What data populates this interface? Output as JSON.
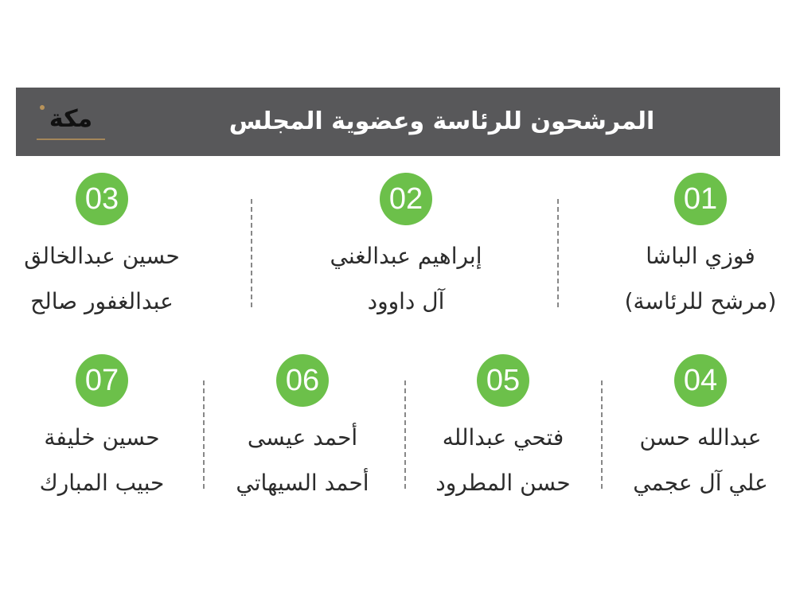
{
  "header": {
    "title": "المرشحون للرئاسة وعضوية المجلس",
    "logo_text": "مكة",
    "background": "#58585a"
  },
  "accent": "#6cc04a",
  "candidates": [
    {
      "number": "01",
      "line1": "فوزي الباشا",
      "line2": "(مرشح للرئاسة)"
    },
    {
      "number": "02",
      "line1": "إبراهيم عبدالغني",
      "line2": "آل داوود"
    },
    {
      "number": "03",
      "line1": "حسين عبدالخالق",
      "line2": "عبدالغفور صالح"
    },
    {
      "number": "04",
      "line1": "عبدالله حسن",
      "line2": "علي آل عجمي"
    },
    {
      "number": "05",
      "line1": "فتحي عبدالله",
      "line2": "حسن المطرود"
    },
    {
      "number": "06",
      "line1": "أحمد عيسى",
      "line2": "أحمد السيهاتي"
    },
    {
      "number": "07",
      "line1": "حسين خليفة",
      "line2": "حبيب المبارك"
    }
  ]
}
